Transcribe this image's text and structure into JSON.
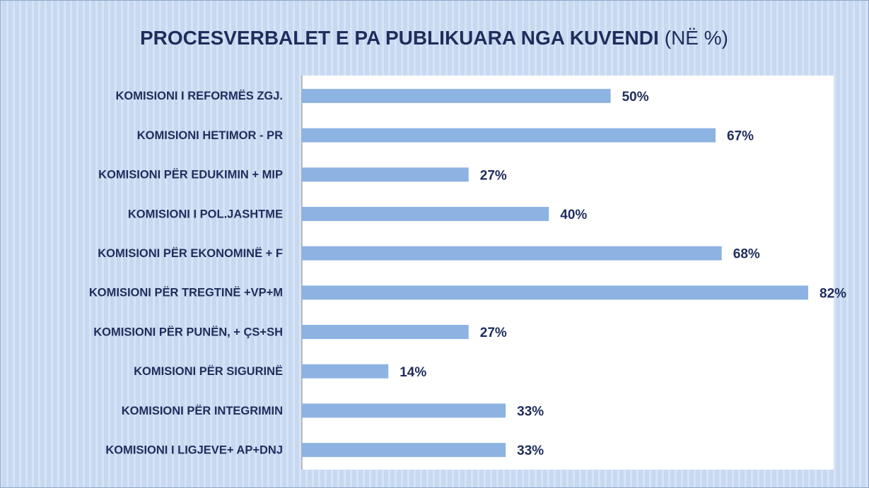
{
  "chart_data": {
    "type": "bar",
    "orientation": "horizontal",
    "title": "PROCESVERBALET E PA PUBLIKUARA NGA KUVENDI",
    "subtitle": "(NË %)",
    "categories": [
      "KOMISIONI I REFORMËS ZGJ.",
      "KOMISIONI HETIMOR - PR",
      "KOMISIONI PËR EDUKIMIN + MIP",
      "KOMISIONI I POL.JASHTME",
      "KOMISIONI PËR EKONOMINË + F",
      "KOMISIONI PËR TREGTINË +VP+M",
      "KOMISIONI PËR PUNËN, + ÇS+SH",
      "KOMISIONI PËR SIGURINË ",
      "KOMISIONI PËR INTEGRIMIN",
      "KOMISIONI I LIGJEVE+ AP+DNJ"
    ],
    "values": [
      50,
      67,
      27,
      40,
      68,
      82,
      27,
      14,
      33,
      33
    ],
    "value_labels": [
      "50%",
      "67%",
      "27%",
      "40%",
      "68%",
      "82%",
      "27%",
      "14%",
      "33%",
      "33%"
    ],
    "color": "#8db3e2"
  }
}
